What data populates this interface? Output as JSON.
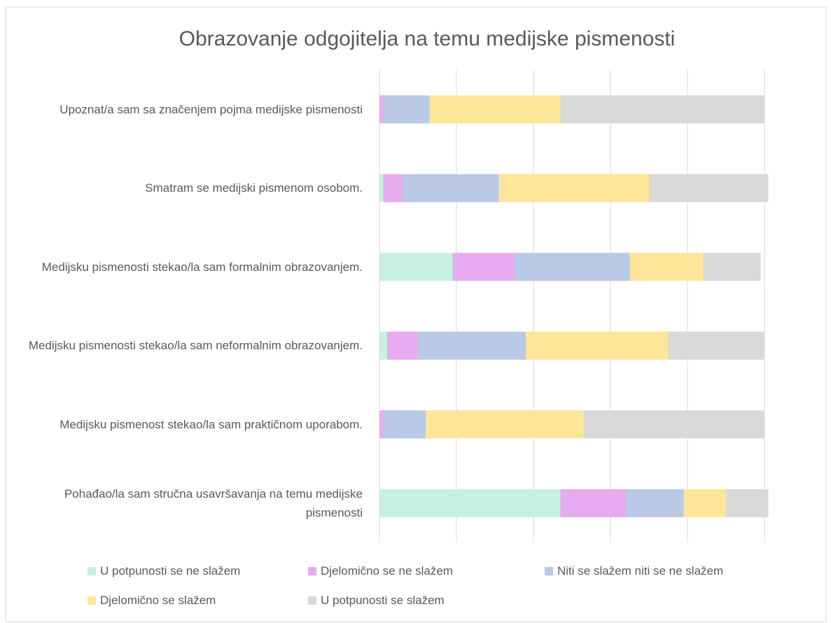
{
  "chart_data": {
    "type": "stacked-bar-horizontal",
    "title": "Obrazovanje odgojitelja na temu medijske pismenosti",
    "categories": [
      "Upoznat/a sam sa značenjem pojma medijske pismenosti",
      "Smatram se medijski pismenom osobom.",
      "Medijsku pismenosti stekao/la sam formalnim obrazovanjem.",
      "Medijsku pismenosti stekao/la sam neformalnim obrazovanjem.",
      "Medijsku pismenost stekao/la sam praktičnom uporabom.",
      "Pohađao/la sam stručna usavršavanja na temu medijske pismenosti"
    ],
    "series": [
      {
        "name": "U potpunosti se ne slažem",
        "color": "#c6f0e0",
        "values": [
          0,
          1,
          19,
          2,
          0,
          47
        ]
      },
      {
        "name": "Djelomično se ne slažem",
        "color": "#e8aaf0",
        "values": [
          1,
          5,
          16,
          8,
          1,
          17
        ]
      },
      {
        "name": "Niti se slažem niti se ne slažem",
        "color": "#b9c9e6",
        "values": [
          12,
          25,
          30,
          28,
          11,
          15
        ]
      },
      {
        "name": "Djelomično se slažem",
        "color": "#fde69a",
        "values": [
          34,
          39,
          19,
          37,
          41,
          11
        ]
      },
      {
        "name": "U potpunosti se slažem",
        "color": "#d9d9d9",
        "values": [
          53,
          31,
          15,
          25,
          47,
          11
        ]
      }
    ],
    "xlim": [
      0,
      100
    ],
    "xticks": [
      0,
      20,
      40,
      60,
      80,
      100
    ],
    "grid": true,
    "legend": "bottom"
  }
}
